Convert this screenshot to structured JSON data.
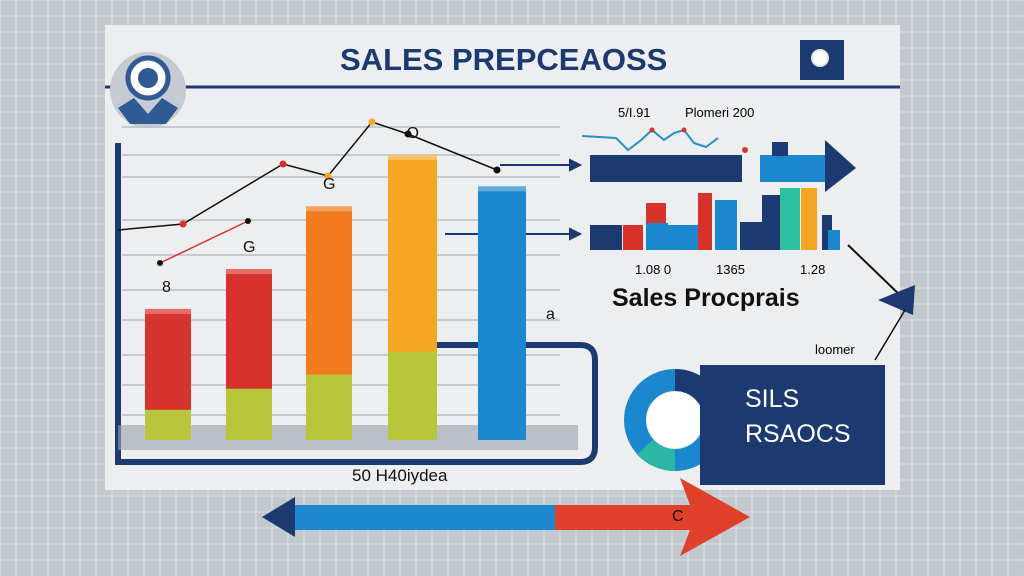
{
  "header": {
    "title": "SALES PREPCEAOSS"
  },
  "left_chart": {
    "bar_labels": [
      "8",
      "G",
      "G",
      "O",
      "a"
    ],
    "footer": "50 H40iydea"
  },
  "right_panel": {
    "top_label_1": "5/I.91",
    "top_label_2": "Plomeri 200",
    "value_labels": [
      "1.08 0",
      "1365",
      "1.28"
    ],
    "subtitle": "Sales Procprais",
    "note": "loomer"
  },
  "summary_card": {
    "line1": "SILS",
    "line2": "RSAOCS"
  },
  "arrow_label": "C",
  "colors": {
    "navy": "#1c3a70",
    "red": "#d8322c",
    "lime": "#b7c63a",
    "orange": "#f27a1f",
    "yellow": "#f5a623",
    "blue": "#1b87cf"
  },
  "chart_data": {
    "type": "bar",
    "categories": [
      "8",
      "G",
      "G",
      "O",
      "a"
    ],
    "series": [
      {
        "values": [
          46,
          60,
          82,
          100,
          89
        ]
      }
    ],
    "line_overlay": [
      30,
      32,
      52,
      48,
      66,
      62,
      50
    ],
    "grid": true
  }
}
